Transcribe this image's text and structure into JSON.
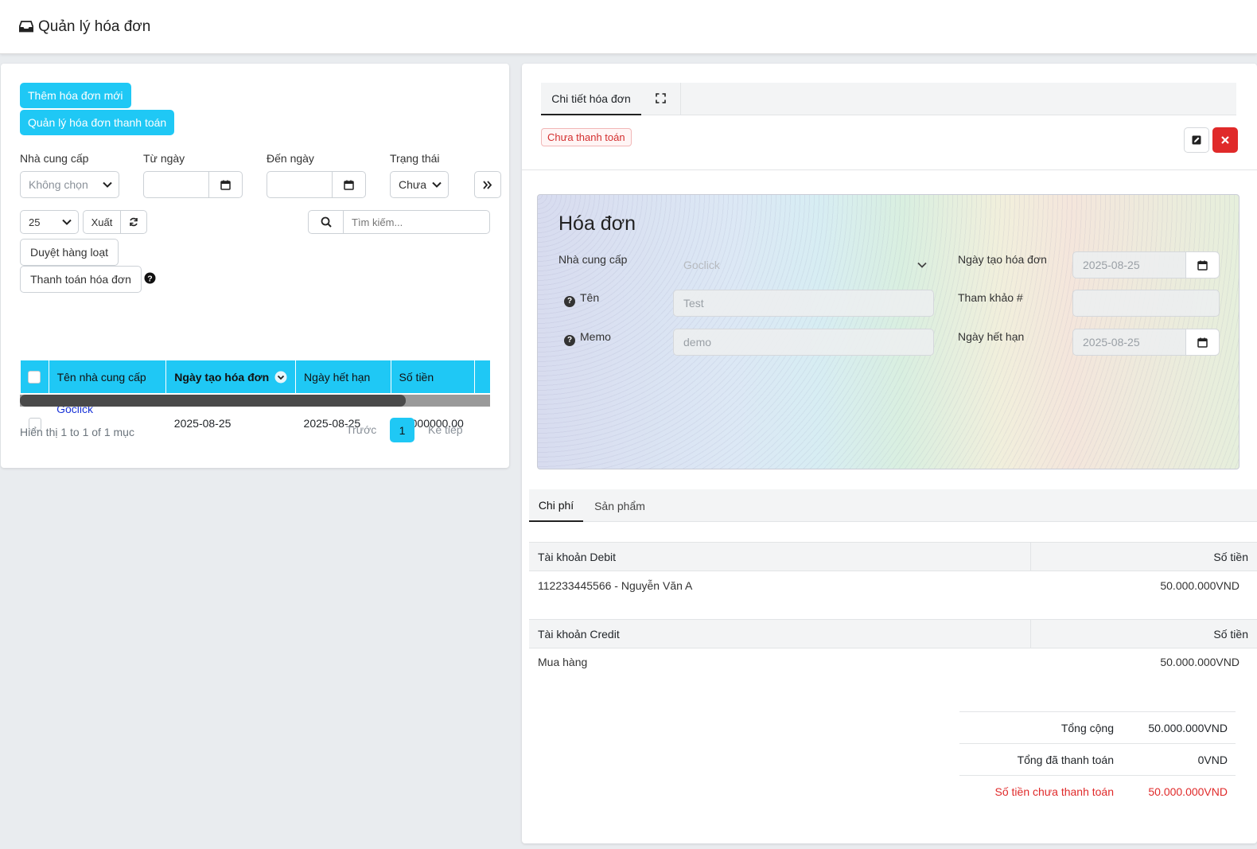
{
  "header": {
    "title": "Quản lý hóa đơn",
    "icon": "inbox-icon"
  },
  "left": {
    "buttons": {
      "add": "Thêm hóa đơn mới",
      "manage_payment": "Quản lý hóa đơn thanh toán"
    },
    "filters": {
      "supplier_label": "Nhà cung cấp",
      "supplier_value": "Không chọn",
      "from_label": "Từ ngày",
      "to_label": "Đến ngày",
      "status_label": "Trạng thái",
      "status_value": "Chưa"
    },
    "toolbar": {
      "page_size": "25",
      "export": "Xuất",
      "search_placeholder": "Tìm kiếm...",
      "bulk_approve": "Duyệt hàng loạt",
      "pay_invoices": "Thanh toán hóa đơn"
    },
    "table": {
      "columns": [
        "Tên nhà cung cấp",
        "Ngày tạo hóa đơn",
        "Ngày hết hạn",
        "Số tiền"
      ],
      "rows": [
        {
          "supplier": "Goclick",
          "created": "2025-08-25",
          "due": "2025-08-25",
          "amount": "50000000.00"
        }
      ]
    },
    "scroll_fraction": 0.82,
    "pagination": {
      "info": "Hiển thị 1 to 1 of 1 mục",
      "prev": "Trước",
      "page": "1",
      "next": "Kế tiếp"
    }
  },
  "right": {
    "tab_label": "Chi tiết hóa đơn",
    "status_badge": "Chưa thanh toán",
    "invoice": {
      "title": "Hóa đơn",
      "supplier_label": "Nhà cung cấp",
      "supplier_value": "Goclick",
      "name_label": "Tên",
      "name_value": "Test",
      "memo_label": "Memo",
      "memo_value": "demo",
      "created_label": "Ngày tạo hóa đơn",
      "created_value": "2025-08-25",
      "ref_label": "Tham khảo #",
      "ref_value": "",
      "due_label": "Ngày hết hạn",
      "due_value": "2025-08-25"
    },
    "tabs": {
      "cost": "Chi phí",
      "product": "Sản phẩm"
    },
    "debit": {
      "head": "Tài khoản Debit",
      "amount_head": "Số tiền",
      "account": "112233445566 - Nguyễn Văn A",
      "amount": "50.000.000VND"
    },
    "credit": {
      "head": "Tài khoản Credit",
      "amount_head": "Số tiền",
      "account": "Mua hàng",
      "amount": "50.000.000VND"
    },
    "totals": {
      "total_label": "Tổng cộng",
      "total_value": "50.000.000VND",
      "paid_label": "Tổng đã thanh toán",
      "paid_value": "0VND",
      "unpaid_label": "Số tiền chưa thanh toán",
      "unpaid_value": "50.000.000VND"
    }
  },
  "colors": {
    "accent": "#1fc8f5",
    "danger": "#e02a2a",
    "link": "#1a34d8"
  }
}
